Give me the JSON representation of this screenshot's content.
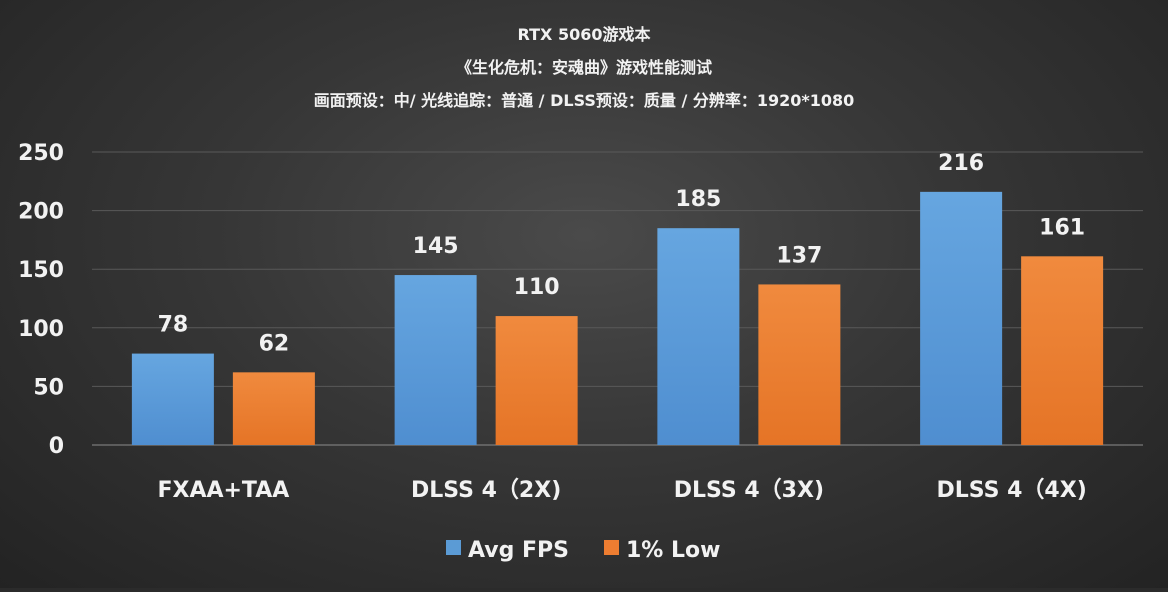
{
  "chart_data": {
    "type": "bar",
    "title": [
      "RTX 5060游戏本",
      "《生化危机：安魂曲》游戏性能测试",
      "画面预设：中/ 光线追踪：普通 / DLSS预设：质量 / 分辨率：1920*1080"
    ],
    "categories": [
      "FXAA+TAA",
      "DLSS 4（2X)",
      "DLSS 4（3X)",
      "DLSS 4（4X)"
    ],
    "series": [
      {
        "name": "Avg FPS",
        "values": [
          78,
          145,
          185,
          216
        ],
        "color": "#5b9bd5"
      },
      {
        "name": "1% Low",
        "values": [
          62,
          110,
          137,
          161
        ],
        "color": "#ed7d31"
      }
    ],
    "ylim": [
      0,
      250
    ],
    "yticks": [
      0,
      50,
      100,
      150,
      200,
      250
    ],
    "grid": true,
    "legend": "bottom-center",
    "data_labels": true
  }
}
